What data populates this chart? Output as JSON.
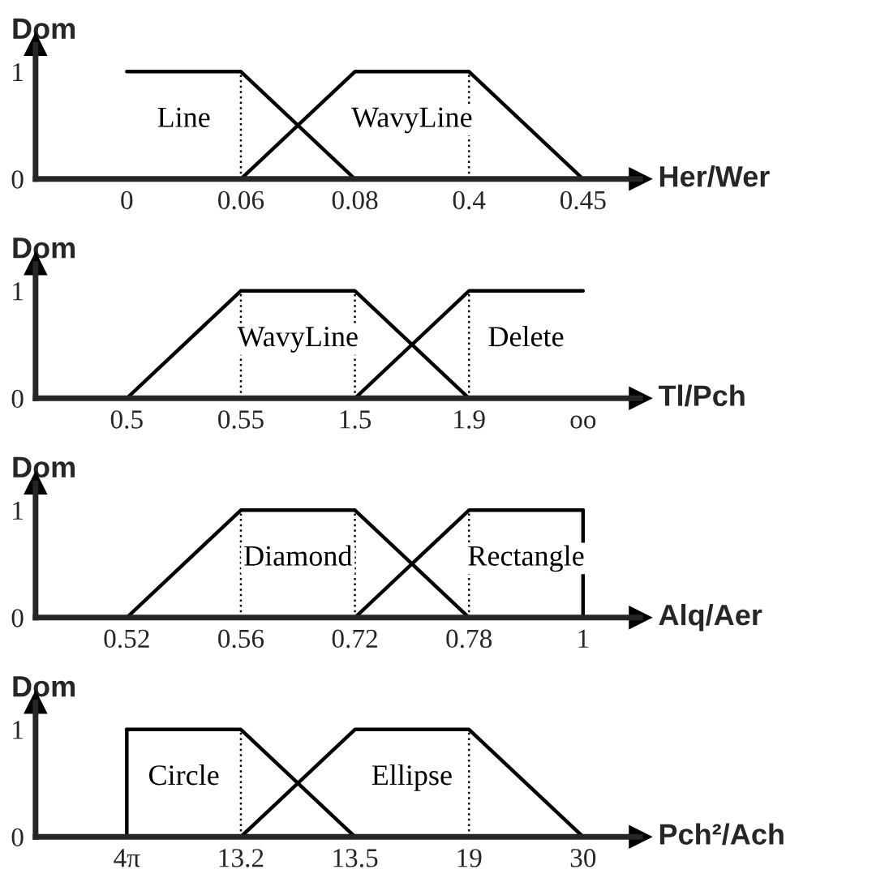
{
  "chart_data": [
    {
      "type": "line",
      "ylabel": "Dom",
      "xlabel": "Her/Wer",
      "categories": [
        "0",
        "0.06",
        "0.08",
        "0.4",
        "0.45"
      ],
      "ylim": [
        0,
        1.25
      ],
      "yticks": [
        0,
        1
      ],
      "grid": false,
      "legend": false,
      "marker": "none",
      "line_style": "solid",
      "series": [
        {
          "name": "Line",
          "color": "#000000",
          "values": [
            1,
            1,
            0,
            null,
            null
          ]
        },
        {
          "name": "WavyLine",
          "color": "#000000",
          "values": [
            null,
            0,
            1,
            1,
            0
          ]
        }
      ],
      "ref_lines": [
        {
          "axis": "x",
          "value": "0.06",
          "label": null,
          "line_style": "dotted"
        },
        {
          "axis": "x",
          "value": "0.4",
          "label": null,
          "line_style": "dotted"
        }
      ]
    },
    {
      "type": "line",
      "ylabel": "Dom",
      "xlabel": "Tl/Pch",
      "categories": [
        "0.5",
        "0.55",
        "1.5",
        "1.9",
        "oo"
      ],
      "ylim": [
        0,
        1.25
      ],
      "yticks": [
        0,
        1
      ],
      "grid": false,
      "legend": false,
      "marker": "none",
      "line_style": "solid",
      "series": [
        {
          "name": "WavyLine",
          "color": "#000000",
          "values": [
            0,
            1,
            1,
            0,
            null
          ]
        },
        {
          "name": "Delete",
          "color": "#000000",
          "values": [
            null,
            null,
            0,
            1,
            1
          ]
        }
      ],
      "ref_lines": [
        {
          "axis": "x",
          "value": "0.55",
          "label": null,
          "line_style": "dotted"
        },
        {
          "axis": "x",
          "value": "1.5",
          "label": null,
          "line_style": "dotted"
        },
        {
          "axis": "x",
          "value": "1.9",
          "label": null,
          "line_style": "dotted"
        }
      ]
    },
    {
      "type": "line",
      "ylabel": "Dom",
      "xlabel": "Alq/Aer",
      "categories": [
        "0.52",
        "0.56",
        "0.72",
        "0.78",
        "1"
      ],
      "ylim": [
        0,
        1.25
      ],
      "yticks": [
        0,
        1
      ],
      "grid": false,
      "legend": false,
      "marker": "none",
      "line_style": "solid",
      "series": [
        {
          "name": "Diamond",
          "color": "#000000",
          "values": [
            0,
            1,
            1,
            0,
            null
          ]
        },
        {
          "name": "Rectangle",
          "color": "#000000",
          "values": [
            null,
            null,
            0,
            1,
            1
          ]
        }
      ],
      "ref_lines": [
        {
          "axis": "x",
          "value": "0.56",
          "label": null,
          "line_style": "dotted"
        },
        {
          "axis": "x",
          "value": "0.72",
          "label": null,
          "line_style": "dotted"
        },
        {
          "axis": "x",
          "value": "0.78",
          "label": null,
          "line_style": "dotted"
        },
        {
          "axis": "x",
          "value": "1",
          "label": null,
          "line_style": "solid"
        }
      ]
    },
    {
      "type": "line",
      "ylabel": "Dom",
      "xlabel": "Pch²/Ach",
      "categories": [
        "4π",
        "13.2",
        "13.5",
        "19",
        "30"
      ],
      "ylim": [
        0,
        1.25
      ],
      "yticks": [
        0,
        1
      ],
      "grid": false,
      "legend": false,
      "marker": "none",
      "line_style": "solid",
      "series": [
        {
          "name": "Circle",
          "color": "#000000",
          "values": [
            1,
            1,
            0,
            null,
            null
          ]
        },
        {
          "name": "Ellipse",
          "color": "#000000",
          "values": [
            null,
            0,
            1,
            1,
            0
          ]
        }
      ],
      "ref_lines": [
        {
          "axis": "x",
          "value": "4π",
          "label": null,
          "line_style": "solid"
        },
        {
          "axis": "x",
          "value": "13.2",
          "label": null,
          "line_style": "dotted"
        },
        {
          "axis": "x",
          "value": "19",
          "label": null,
          "line_style": "dotted"
        }
      ]
    }
  ]
}
